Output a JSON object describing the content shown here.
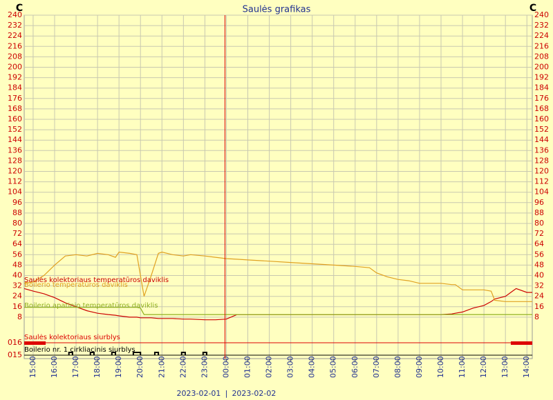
{
  "chart_data": {
    "type": "line",
    "title": "Saulės grafikas",
    "unit_left": "C",
    "unit_right": "C",
    "x": [
      "14:35",
      "15:00",
      "15:30",
      "16:00",
      "16:30",
      "17:00",
      "17:30",
      "18:00",
      "18:30",
      "18:50",
      "19:00",
      "19:30",
      "19:50",
      "20:00",
      "20:10",
      "20:30",
      "20:50",
      "21:00",
      "21:30",
      "22:00",
      "22:20",
      "23:00",
      "23:30",
      "00:00",
      "00:30",
      "01:00",
      "02:00",
      "03:00",
      "04:00",
      "05:00",
      "06:00",
      "06:40",
      "07:00",
      "07:30",
      "08:00",
      "08:30",
      "09:00",
      "10:00",
      "10:30",
      "10:40",
      "11:00",
      "11:30",
      "12:00",
      "12:20",
      "12:30",
      "13:00",
      "13:20",
      "13:30",
      "14:00",
      "14:15"
    ],
    "series": [
      {
        "name": "Saulės kolektoriaus temperatūros daviklis",
        "color": "#cc0000",
        "values": [
          30,
          28,
          26,
          23,
          19,
          16,
          13,
          11,
          10,
          9.5,
          9,
          8,
          8,
          7.5,
          7.5,
          7.5,
          7,
          7,
          7,
          6.5,
          6.5,
          6,
          6,
          6.5,
          10,
          10,
          10,
          10,
          10,
          10,
          10,
          10,
          10,
          10,
          10,
          10,
          10,
          10,
          10.5,
          11,
          12,
          15,
          17,
          20,
          22,
          24,
          28,
          30,
          27,
          27
        ]
      },
      {
        "name": "Boilerio temperatūros daviklis",
        "color": "#e0a020",
        "values": [
          34,
          35,
          40,
          48,
          55,
          56,
          55,
          57,
          56,
          54,
          58,
          57,
          56,
          40,
          24,
          40,
          57,
          58,
          56,
          55,
          56,
          55,
          54,
          53,
          52.5,
          52,
          51,
          50,
          49,
          48,
          47,
          46,
          42,
          39,
          37,
          36,
          34,
          34,
          33,
          33,
          29,
          29,
          29,
          28,
          21,
          20,
          20,
          20,
          20,
          20
        ]
      },
      {
        "name": "Boilerio apatinio temperatūros daviklis",
        "color": "#90b020",
        "values": [
          15.5,
          15.5,
          15.5,
          15.5,
          15.5,
          15.5,
          15.5,
          15.5,
          15.5,
          15.5,
          15.5,
          15.5,
          15.5,
          15,
          10,
          10,
          10,
          10,
          10,
          10,
          10,
          10,
          10,
          10,
          10,
          10,
          10,
          10,
          10,
          10,
          10,
          10,
          10,
          10,
          10,
          10,
          10,
          10,
          10,
          10,
          10,
          10,
          10,
          10,
          10,
          10,
          10,
          10,
          10,
          10
        ]
      }
    ],
    "ylim": [
      0,
      240
    ],
    "yticks": [
      8,
      16,
      24,
      32,
      40,
      48,
      56,
      64,
      72,
      80,
      88,
      96,
      104,
      112,
      120,
      128,
      136,
      144,
      152,
      160,
      168,
      176,
      184,
      192,
      200,
      208,
      216,
      224,
      232,
      240
    ],
    "xticks": [
      "15:00",
      "16:00",
      "17:00",
      "18:00",
      "19:00",
      "20:00",
      "21:00",
      "22:00",
      "23:00",
      "00:00",
      "01:00",
      "02:00",
      "03:00",
      "04:00",
      "05:00",
      "06:00",
      "07:00",
      "08:00",
      "09:00",
      "10:00",
      "11:00",
      "12:00",
      "13:00",
      "14:00"
    ],
    "dates": [
      "2023-02-01",
      "2023-02-02"
    ],
    "date_separator": "|",
    "grid": true,
    "status_rows": [
      {
        "name": "Saulės kolektoriaus siurblys",
        "code": "016",
        "color": "#dd0000",
        "on": [
          [
            "14:35",
            "15:35"
          ],
          [
            "13:15",
            "14:15"
          ]
        ]
      },
      {
        "name": "Boilerio nr. 1 cirkliacinis siurblys",
        "code": "015",
        "color": "#000000",
        "on": [
          [
            "16:40",
            "16:50"
          ],
          [
            "17:40",
            "17:50"
          ],
          [
            "18:40",
            "18:50"
          ],
          [
            "19:40",
            "20:00"
          ],
          [
            "20:40",
            "20:50"
          ],
          [
            "21:55",
            "22:05"
          ],
          [
            "22:55",
            "23:05"
          ]
        ]
      }
    ]
  }
}
